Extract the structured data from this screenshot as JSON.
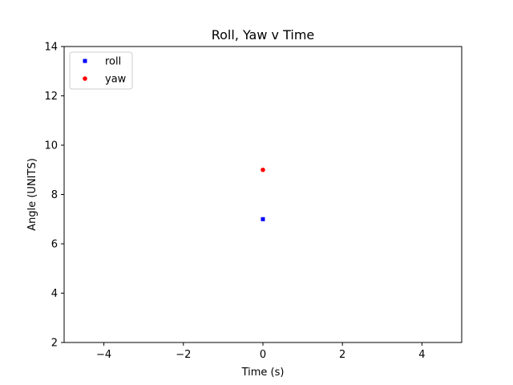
{
  "chart_data": {
    "type": "scatter",
    "title": "Roll, Yaw v Time",
    "xlabel": "Time (s)",
    "ylabel": "Angle (UNITS)",
    "xlim": [
      -5,
      5
    ],
    "ylim": [
      2,
      14
    ],
    "xticks": [
      -4,
      -2,
      0,
      2,
      4
    ],
    "yticks": [
      2,
      4,
      6,
      8,
      10,
      12,
      14
    ],
    "xtick_labels": [
      "−4",
      "−2",
      "0",
      "2",
      "4"
    ],
    "ytick_labels": [
      "2",
      "4",
      "6",
      "8",
      "10",
      "12",
      "14"
    ],
    "grid": false,
    "legend_position": "top-left",
    "series": [
      {
        "name": "roll",
        "marker": "square",
        "color": "#0000ff",
        "x": [
          0
        ],
        "y": [
          7
        ]
      },
      {
        "name": "yaw",
        "marker": "circle",
        "color": "#ff0000",
        "x": [
          0
        ],
        "y": [
          9
        ]
      }
    ]
  }
}
